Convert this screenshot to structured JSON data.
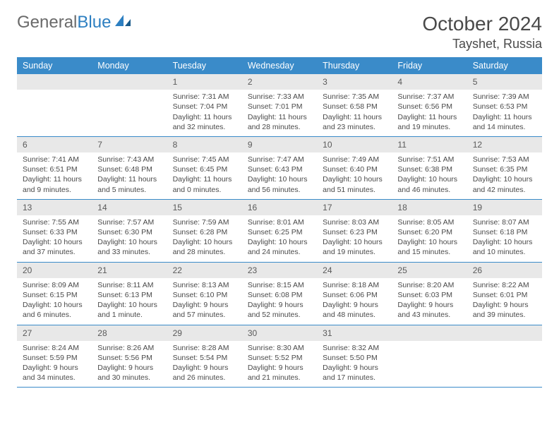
{
  "logo": {
    "textGray": "General",
    "textBlue": "Blue"
  },
  "title": "October 2024",
  "location": "Tayshet, Russia",
  "dayHeaders": [
    "Sunday",
    "Monday",
    "Tuesday",
    "Wednesday",
    "Thursday",
    "Friday",
    "Saturday"
  ],
  "colors": {
    "headerBg": "#3a8bc9",
    "headerText": "#ffffff",
    "dayNumBg": "#e8e8e8",
    "borderColor": "#3a8bc9",
    "bodyBg": "#ffffff"
  },
  "weeks": [
    [
      {
        "num": "",
        "lines": []
      },
      {
        "num": "",
        "lines": []
      },
      {
        "num": "1",
        "lines": [
          "Sunrise: 7:31 AM",
          "Sunset: 7:04 PM",
          "Daylight: 11 hours",
          "and 32 minutes."
        ]
      },
      {
        "num": "2",
        "lines": [
          "Sunrise: 7:33 AM",
          "Sunset: 7:01 PM",
          "Daylight: 11 hours",
          "and 28 minutes."
        ]
      },
      {
        "num": "3",
        "lines": [
          "Sunrise: 7:35 AM",
          "Sunset: 6:58 PM",
          "Daylight: 11 hours",
          "and 23 minutes."
        ]
      },
      {
        "num": "4",
        "lines": [
          "Sunrise: 7:37 AM",
          "Sunset: 6:56 PM",
          "Daylight: 11 hours",
          "and 19 minutes."
        ]
      },
      {
        "num": "5",
        "lines": [
          "Sunrise: 7:39 AM",
          "Sunset: 6:53 PM",
          "Daylight: 11 hours",
          "and 14 minutes."
        ]
      }
    ],
    [
      {
        "num": "6",
        "lines": [
          "Sunrise: 7:41 AM",
          "Sunset: 6:51 PM",
          "Daylight: 11 hours",
          "and 9 minutes."
        ]
      },
      {
        "num": "7",
        "lines": [
          "Sunrise: 7:43 AM",
          "Sunset: 6:48 PM",
          "Daylight: 11 hours",
          "and 5 minutes."
        ]
      },
      {
        "num": "8",
        "lines": [
          "Sunrise: 7:45 AM",
          "Sunset: 6:45 PM",
          "Daylight: 11 hours",
          "and 0 minutes."
        ]
      },
      {
        "num": "9",
        "lines": [
          "Sunrise: 7:47 AM",
          "Sunset: 6:43 PM",
          "Daylight: 10 hours",
          "and 56 minutes."
        ]
      },
      {
        "num": "10",
        "lines": [
          "Sunrise: 7:49 AM",
          "Sunset: 6:40 PM",
          "Daylight: 10 hours",
          "and 51 minutes."
        ]
      },
      {
        "num": "11",
        "lines": [
          "Sunrise: 7:51 AM",
          "Sunset: 6:38 PM",
          "Daylight: 10 hours",
          "and 46 minutes."
        ]
      },
      {
        "num": "12",
        "lines": [
          "Sunrise: 7:53 AM",
          "Sunset: 6:35 PM",
          "Daylight: 10 hours",
          "and 42 minutes."
        ]
      }
    ],
    [
      {
        "num": "13",
        "lines": [
          "Sunrise: 7:55 AM",
          "Sunset: 6:33 PM",
          "Daylight: 10 hours",
          "and 37 minutes."
        ]
      },
      {
        "num": "14",
        "lines": [
          "Sunrise: 7:57 AM",
          "Sunset: 6:30 PM",
          "Daylight: 10 hours",
          "and 33 minutes."
        ]
      },
      {
        "num": "15",
        "lines": [
          "Sunrise: 7:59 AM",
          "Sunset: 6:28 PM",
          "Daylight: 10 hours",
          "and 28 minutes."
        ]
      },
      {
        "num": "16",
        "lines": [
          "Sunrise: 8:01 AM",
          "Sunset: 6:25 PM",
          "Daylight: 10 hours",
          "and 24 minutes."
        ]
      },
      {
        "num": "17",
        "lines": [
          "Sunrise: 8:03 AM",
          "Sunset: 6:23 PM",
          "Daylight: 10 hours",
          "and 19 minutes."
        ]
      },
      {
        "num": "18",
        "lines": [
          "Sunrise: 8:05 AM",
          "Sunset: 6:20 PM",
          "Daylight: 10 hours",
          "and 15 minutes."
        ]
      },
      {
        "num": "19",
        "lines": [
          "Sunrise: 8:07 AM",
          "Sunset: 6:18 PM",
          "Daylight: 10 hours",
          "and 10 minutes."
        ]
      }
    ],
    [
      {
        "num": "20",
        "lines": [
          "Sunrise: 8:09 AM",
          "Sunset: 6:15 PM",
          "Daylight: 10 hours",
          "and 6 minutes."
        ]
      },
      {
        "num": "21",
        "lines": [
          "Sunrise: 8:11 AM",
          "Sunset: 6:13 PM",
          "Daylight: 10 hours",
          "and 1 minute."
        ]
      },
      {
        "num": "22",
        "lines": [
          "Sunrise: 8:13 AM",
          "Sunset: 6:10 PM",
          "Daylight: 9 hours",
          "and 57 minutes."
        ]
      },
      {
        "num": "23",
        "lines": [
          "Sunrise: 8:15 AM",
          "Sunset: 6:08 PM",
          "Daylight: 9 hours",
          "and 52 minutes."
        ]
      },
      {
        "num": "24",
        "lines": [
          "Sunrise: 8:18 AM",
          "Sunset: 6:06 PM",
          "Daylight: 9 hours",
          "and 48 minutes."
        ]
      },
      {
        "num": "25",
        "lines": [
          "Sunrise: 8:20 AM",
          "Sunset: 6:03 PM",
          "Daylight: 9 hours",
          "and 43 minutes."
        ]
      },
      {
        "num": "26",
        "lines": [
          "Sunrise: 8:22 AM",
          "Sunset: 6:01 PM",
          "Daylight: 9 hours",
          "and 39 minutes."
        ]
      }
    ],
    [
      {
        "num": "27",
        "lines": [
          "Sunrise: 8:24 AM",
          "Sunset: 5:59 PM",
          "Daylight: 9 hours",
          "and 34 minutes."
        ]
      },
      {
        "num": "28",
        "lines": [
          "Sunrise: 8:26 AM",
          "Sunset: 5:56 PM",
          "Daylight: 9 hours",
          "and 30 minutes."
        ]
      },
      {
        "num": "29",
        "lines": [
          "Sunrise: 8:28 AM",
          "Sunset: 5:54 PM",
          "Daylight: 9 hours",
          "and 26 minutes."
        ]
      },
      {
        "num": "30",
        "lines": [
          "Sunrise: 8:30 AM",
          "Sunset: 5:52 PM",
          "Daylight: 9 hours",
          "and 21 minutes."
        ]
      },
      {
        "num": "31",
        "lines": [
          "Sunrise: 8:32 AM",
          "Sunset: 5:50 PM",
          "Daylight: 9 hours",
          "and 17 minutes."
        ]
      },
      {
        "num": "",
        "lines": []
      },
      {
        "num": "",
        "lines": []
      }
    ]
  ]
}
